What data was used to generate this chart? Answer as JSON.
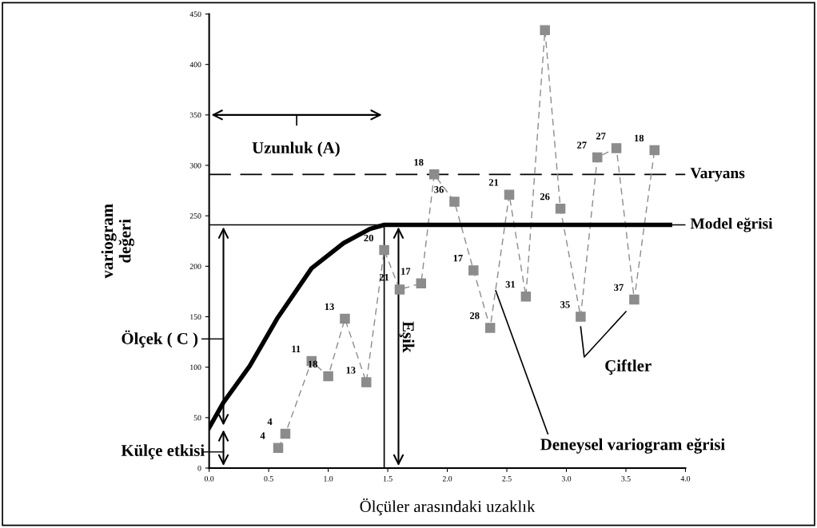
{
  "chart_data": {
    "type": "line",
    "xlabel": "Ölçüler arasındaki uzaklık",
    "ylabel": "variogram\ndeğeri",
    "xlim": [
      0,
      4.0
    ],
    "xticks": [
      {
        "value": 0,
        "label": "0.0"
      },
      {
        "value": 0.5,
        "label": "0.5"
      },
      {
        "value": 1.0,
        "label": "1.0"
      },
      {
        "value": 1.5,
        "label": "1.5"
      },
      {
        "value": 2.0,
        "label": "2.0"
      },
      {
        "value": 2.5,
        "label": "2.5"
      },
      {
        "value": 3.0,
        "label": "3.0"
      },
      {
        "value": 3.5,
        "label": "3.5"
      },
      {
        "value": 4.0,
        "label": "4.0"
      }
    ],
    "ylim": [
      0,
      450
    ],
    "yticks": [
      0,
      50,
      100,
      150,
      200,
      250,
      300,
      350,
      400,
      450
    ],
    "grid": false,
    "legend": false,
    "series": [
      {
        "color": "#8c8c8c",
        "marker": "square",
        "line_style": "dashed",
        "x": [
          0.58,
          0.64,
          0.86,
          1.0,
          1.14,
          1.32,
          1.47,
          1.6,
          1.78,
          1.89,
          2.06,
          2.22,
          2.36,
          2.52,
          2.66,
          2.82,
          2.95,
          3.12,
          3.26,
          3.42,
          3.57,
          3.74
        ],
        "values": [
          20,
          34,
          106,
          91,
          148,
          85,
          216,
          177,
          183,
          291,
          264,
          196,
          139,
          271,
          170,
          434,
          257,
          150,
          308,
          317,
          167,
          315
        ]
      },
      {
        "name": "Model eğrisi",
        "color": "#000000",
        "marker": "none",
        "line_style": "solid",
        "x": [
          0,
          0.12,
          0.34,
          0.57,
          0.86,
          1.13,
          1.35,
          1.47,
          3.87
        ],
        "values": [
          40,
          65,
          101,
          148,
          198,
          223,
          237,
          241,
          241
        ]
      }
    ],
    "ref_lines": [
      {
        "axis": "y",
        "value": 291,
        "label": "Varyans",
        "color": "#000000",
        "line_style": "dashed"
      },
      {
        "axis": "y",
        "value": 241,
        "color": "#000000",
        "line_style": "solid"
      },
      {
        "axis": "x",
        "value": 1.47,
        "color": "#000000",
        "line_style": "solid"
      }
    ],
    "annotations": [
      {
        "text": "4",
        "x": 0.58,
        "y": 20
      },
      {
        "text": "4",
        "x": 0.64,
        "y": 34
      },
      {
        "text": "11",
        "x": 0.86,
        "y": 106
      },
      {
        "text": "18",
        "x": 1.0,
        "y": 91
      },
      {
        "text": "13",
        "x": 1.14,
        "y": 148
      },
      {
        "text": "13",
        "x": 1.32,
        "y": 85
      },
      {
        "text": "20",
        "x": 1.47,
        "y": 216
      },
      {
        "text": "21",
        "x": 1.6,
        "y": 177
      },
      {
        "text": "17",
        "x": 1.78,
        "y": 183
      },
      {
        "text": "18",
        "x": 1.89,
        "y": 291
      },
      {
        "text": "36",
        "x": 2.06,
        "y": 264
      },
      {
        "text": "17",
        "x": 2.22,
        "y": 196
      },
      {
        "text": "28",
        "x": 2.36,
        "y": 139
      },
      {
        "text": "21",
        "x": 2.52,
        "y": 271
      },
      {
        "text": "31",
        "x": 2.66,
        "y": 170
      },
      {
        "text": "26",
        "x": 2.95,
        "y": 257
      },
      {
        "text": "35",
        "x": 3.12,
        "y": 150
      },
      {
        "text": "27",
        "x": 3.26,
        "y": 308
      },
      {
        "text": "27",
        "x": 3.42,
        "y": 317
      },
      {
        "text": "37",
        "x": 3.57,
        "y": 167
      },
      {
        "text": "18",
        "x": 3.74,
        "y": 315
      },
      "Uzunluk (A)",
      "Ölçek ( C )",
      "Külçe etkisi",
      "Eşik",
      {
        "text": "Deneysel variogram eğrisi",
        "x": 2.4,
        "y": 178
      },
      "Çiftler"
    ]
  }
}
